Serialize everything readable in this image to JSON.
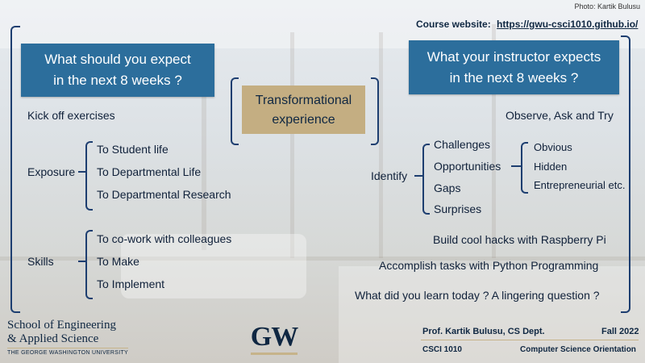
{
  "photo_credit": "Photo: Kartik Bulusu",
  "course_website": {
    "label": "Course website:",
    "url": "https://gwu-csci1010.github.io/"
  },
  "left_box": {
    "line1": "What should you expect",
    "line2": "in the next 8 weeks ?"
  },
  "center_box": {
    "line1": "Transformational",
    "line2": "experience"
  },
  "right_box": {
    "line1": "What your instructor expects",
    "line2": "in the next 8 weeks ?"
  },
  "left": {
    "kickoff": "Kick off exercises",
    "exposure": {
      "label": "Exposure",
      "items": [
        "To Student life",
        "To Departmental Life",
        "To Departmental Research"
      ]
    },
    "skills": {
      "label": "Skills",
      "items": [
        "To co-work with colleagues",
        "To Make",
        "To Implement"
      ]
    }
  },
  "right": {
    "observe": "Observe, Ask and Try",
    "identify": {
      "label": "Identify",
      "items": [
        "Challenges",
        "Opportunities",
        "Gaps",
        "Surprises"
      ],
      "sub": [
        "Obvious",
        "Hidden",
        "Entrepreneurial etc."
      ]
    },
    "hacks": "Build cool hacks with Raspberry Pi",
    "python": "Accomplish tasks with Python Programming",
    "question": "What did you learn today ? A lingering question ?"
  },
  "footer": {
    "school_line1": "School of Engineering",
    "school_line2": "& Applied Science",
    "university": "THE GEORGE WASHINGTON UNIVERSITY",
    "logo_text": "GW",
    "professor": "Prof. Kartik Bulusu, CS Dept.",
    "term": "Fall 2022",
    "course_code": "CSCI 1010",
    "course_name": "Computer Science Orientation"
  },
  "colors": {
    "navy": "#0f2742",
    "box_blue": "#2c6e9c",
    "box_tan": "#c4ae82",
    "gold": "#c6b38a"
  }
}
